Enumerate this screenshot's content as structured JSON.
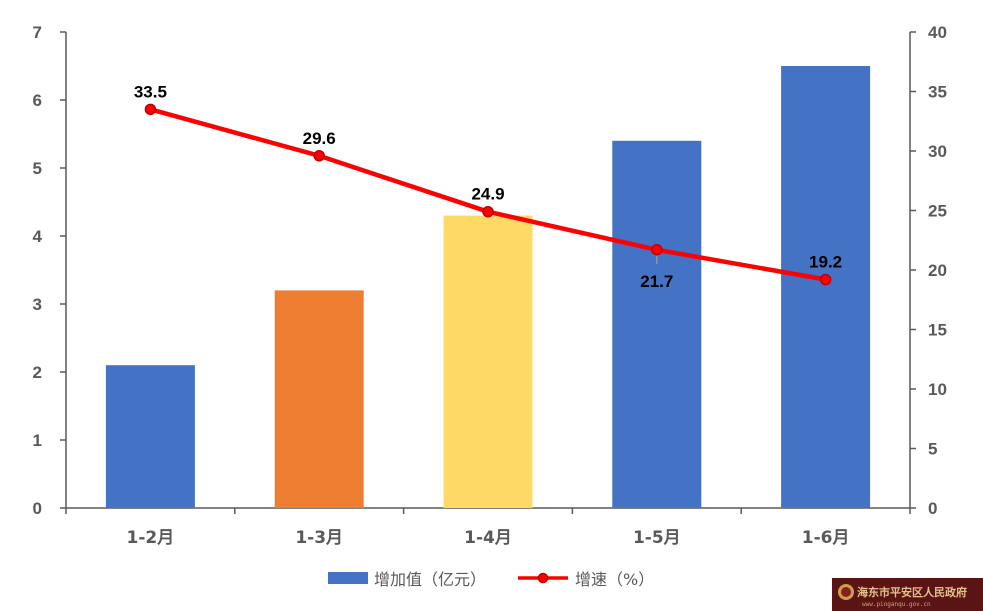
{
  "chart_data": {
    "type": "bar",
    "categories": [
      "1-2月",
      "1-3月",
      "1-4月",
      "1-5月",
      "1-6月"
    ],
    "series": [
      {
        "name": "增加值（亿元）",
        "type": "bar",
        "axis": "left",
        "values": [
          2.1,
          3.2,
          4.3,
          5.4,
          6.5
        ],
        "colors": [
          "#4472C4",
          "#ED7D31",
          "#FFD966",
          "#4472C4",
          "#4472C4"
        ]
      },
      {
        "name": "增速（%）",
        "type": "line",
        "axis": "right",
        "values": [
          33.5,
          29.6,
          24.9,
          21.7,
          19.2
        ],
        "labels": [
          "33.5",
          "29.6",
          "24.9",
          "21.7",
          "19.2"
        ],
        "label_positions": [
          "above",
          "above",
          "above",
          "below",
          "above"
        ],
        "color": "#FF0000",
        "marker_color": "#C00000"
      }
    ],
    "y_left": {
      "ylim": [
        0,
        7
      ],
      "ticks": [
        "0",
        "1",
        "2",
        "3",
        "4",
        "5",
        "6",
        "7"
      ]
    },
    "y_right": {
      "ylim": [
        0,
        40
      ],
      "ticks": [
        "0",
        "5",
        "10",
        "15",
        "20",
        "25",
        "30",
        "35",
        "40"
      ]
    },
    "grid": false,
    "legend_position": "bottom"
  },
  "watermark": {
    "text": "海东市平安区人民政府",
    "sub": "www.pinganqu.gov.cn"
  }
}
